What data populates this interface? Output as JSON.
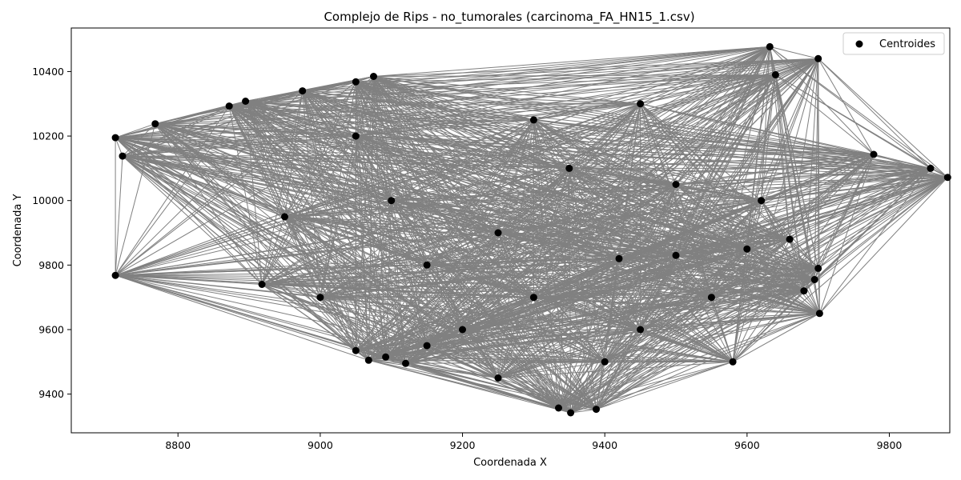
{
  "chart_data": {
    "type": "scatter",
    "title": "Complejo de Rips - no_tumorales (carcinoma_FA_HN15_1.csv)",
    "xlabel": "Coordenada X",
    "ylabel": "Coordenada Y",
    "xlim": [
      8650,
      9885
    ],
    "ylim": [
      9280,
      10535
    ],
    "xticks": [
      8800,
      9000,
      9200,
      9400,
      9600,
      9800
    ],
    "yticks": [
      9400,
      9600,
      9800,
      10000,
      10200,
      10400
    ],
    "xtick_labels": [
      "8800",
      "9000",
      "9200",
      "9400",
      "9600",
      "9800"
    ],
    "ytick_labels": [
      "9400",
      "9600",
      "9800",
      "10000",
      "10200",
      "10400"
    ],
    "grid": false,
    "legend": {
      "location": "upper right",
      "entries": [
        "Centroides"
      ]
    },
    "point_color": "#000000",
    "edge_color": "#808080",
    "series": [
      {
        "name": "Centroides",
        "points": [
          [
            8712,
            10195
          ],
          [
            8722,
            10138
          ],
          [
            8768,
            10238
          ],
          [
            8872,
            10293
          ],
          [
            8895,
            10308
          ],
          [
            8975,
            10340
          ],
          [
            9050,
            10368
          ],
          [
            9075,
            10385
          ],
          [
            8712,
            9768
          ],
          [
            8918,
            9740
          ],
          [
            9050,
            9535
          ],
          [
            9068,
            9505
          ],
          [
            9092,
            9515
          ],
          [
            9120,
            9495
          ],
          [
            9335,
            9357
          ],
          [
            9352,
            9342
          ],
          [
            9388,
            9353
          ],
          [
            9632,
            10477
          ],
          [
            9700,
            10440
          ],
          [
            9778,
            10143
          ],
          [
            9858,
            10100
          ],
          [
            9882,
            10072
          ],
          [
            9702,
            9650
          ],
          [
            9695,
            9755
          ],
          [
            9700,
            9790
          ],
          [
            9680,
            9720
          ],
          [
            9500,
            9830
          ],
          [
            9420,
            9820
          ],
          [
            9300,
            9700
          ],
          [
            9450,
            9600
          ],
          [
            9550,
            9700
          ],
          [
            9600,
            9850
          ],
          [
            9250,
            9900
          ],
          [
            9150,
            9800
          ],
          [
            9000,
            9700
          ],
          [
            9100,
            10000
          ],
          [
            9350,
            10100
          ],
          [
            9500,
            10050
          ],
          [
            9640,
            10390
          ],
          [
            9620,
            10000
          ],
          [
            9200,
            9600
          ],
          [
            9400,
            9500
          ],
          [
            9580,
            9500
          ],
          [
            9660,
            9880
          ],
          [
            9300,
            10250
          ],
          [
            9450,
            10300
          ],
          [
            9050,
            10200
          ],
          [
            8950,
            9950
          ],
          [
            9150,
            9550
          ],
          [
            9250,
            9450
          ]
        ]
      }
    ]
  }
}
